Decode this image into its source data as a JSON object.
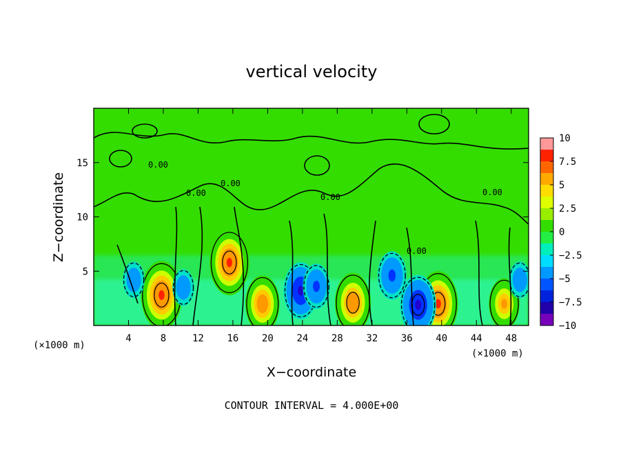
{
  "chart_data": {
    "type": "heatmap",
    "title": "vertical velocity",
    "xlabel": "X−coordinate",
    "ylabel": "Z−coordinate",
    "x_unit_left": "(×1000 m)",
    "x_unit_right": "(×1000 m)",
    "footer": "CONTOUR INTERVAL = 4.000E+00",
    "xlim": [
      0,
      50
    ],
    "ylim": [
      0,
      20
    ],
    "x_ticks": [
      4,
      8,
      12,
      16,
      20,
      24,
      28,
      32,
      36,
      40,
      44,
      48
    ],
    "y_ticks": [
      5,
      10,
      15
    ],
    "colorbar": {
      "min": -10,
      "max": 10,
      "ticks": [
        10,
        7.5,
        5,
        2.5,
        0,
        -2.5,
        -5,
        -7.5,
        -10
      ],
      "tick_labels": [
        "10",
        "7.5",
        "5",
        "2.5",
        "0",
        "−2.5",
        "−5",
        "−7.5",
        "−10"
      ]
    },
    "zero_contour_label": "0.00",
    "features": [
      {
        "x": 7.8,
        "z": 2.8,
        "value": 8.5
      },
      {
        "x": 15.6,
        "z": 5.8,
        "value": 8.0
      },
      {
        "x": 19.4,
        "z": 2.0,
        "value": 6.5
      },
      {
        "x": 29.8,
        "z": 2.1,
        "value": 7.0
      },
      {
        "x": 39.6,
        "z": 2.0,
        "value": 8.0
      },
      {
        "x": 47.2,
        "z": 2.0,
        "value": 5.5
      },
      {
        "x": 23.8,
        "z": 3.2,
        "value": -6.5
      },
      {
        "x": 25.6,
        "z": 3.6,
        "value": -4.5
      },
      {
        "x": 37.3,
        "z": 1.9,
        "value": -7.0
      },
      {
        "x": 34.3,
        "z": 4.6,
        "value": -5.0
      },
      {
        "x": 4.6,
        "z": 4.2,
        "value": -3.0
      },
      {
        "x": 10.3,
        "z": 3.5,
        "value": -3.0
      },
      {
        "x": 49.0,
        "z": 4.2,
        "value": -3.0
      }
    ]
  }
}
